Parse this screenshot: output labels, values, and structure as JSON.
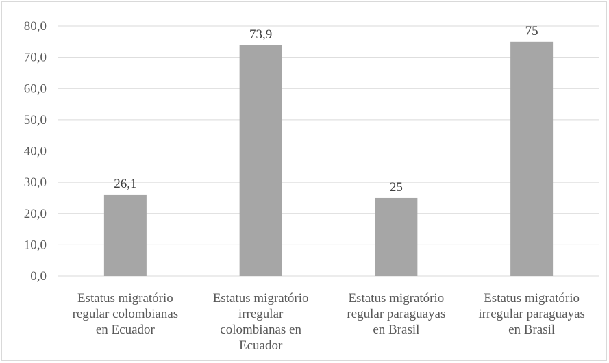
{
  "chart_data": {
    "type": "bar",
    "title": "",
    "xlabel": "",
    "ylabel": "",
    "categories": [
      [
        "Estatus migratório",
        "regular colombianas",
        "en Ecuador"
      ],
      [
        "Estatus migratório",
        "irregular",
        "colombianas en",
        "Ecuador"
      ],
      [
        "Estatus migratório",
        "regular paraguayas",
        "en Brasil"
      ],
      [
        "Estatus migratório",
        "irregular paraguayas",
        "en Brasil"
      ]
    ],
    "values": [
      26.1,
      73.9,
      25,
      75
    ],
    "data_labels": [
      "26,1",
      "73,9",
      "25",
      "75"
    ],
    "ylim": [
      0,
      80
    ],
    "yticks": [
      0,
      10,
      20,
      30,
      40,
      50,
      60,
      70,
      80
    ],
    "ytick_labels": [
      "0,0",
      "10,0",
      "20,0",
      "30,0",
      "40,0",
      "50,0",
      "60,0",
      "70,0",
      "80,0"
    ],
    "grid": true,
    "legend": "none",
    "colors": {
      "bar": "#a6a6a6",
      "grid": "#d9d9d9",
      "axis": "#d9d9d9"
    }
  }
}
